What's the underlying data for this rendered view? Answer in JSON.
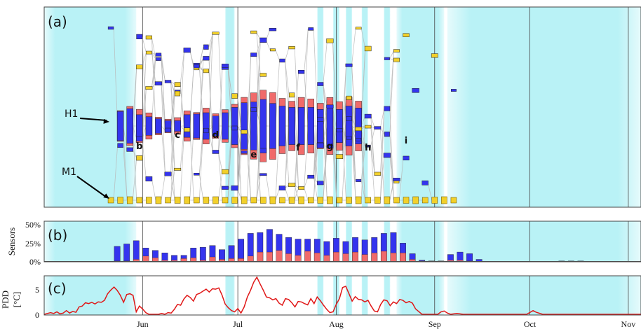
{
  "chart_data": [
    {
      "type": "timeline-graph",
      "panel_label": "(a)",
      "annotations": [
        {
          "label": "H1",
          "x": "2018-05-22",
          "level": 175
        },
        {
          "label": "M1",
          "x": "2018-05-22",
          "level": 285
        }
      ],
      "period_letters": [
        {
          "label": "b",
          "x": "2018-05-31",
          "level": 213
        },
        {
          "label": "c",
          "x": "2018-06-12",
          "level": 197
        },
        {
          "label": "d",
          "x": "2018-06-24",
          "level": 197
        },
        {
          "label": "e",
          "x": "2018-07-06",
          "level": 225
        },
        {
          "label": "f",
          "x": "2018-07-20",
          "level": 215
        },
        {
          "label": "g",
          "x": "2018-07-30",
          "level": 213
        },
        {
          "label": "h",
          "x": "2018-08-11",
          "level": 215
        },
        {
          "label": "i",
          "x": "2018-08-23",
          "level": 205
        }
      ],
      "cyan_shading": [
        "2018-05-01/2018-05-30",
        "2018-06-27/2018-06-30",
        "2018-07-26/2018-07-28",
        "2018-07-31/2018-08-02",
        "2018-08-04/2018-08-06",
        "2018-08-09/2018-08-11",
        "2018-08-16/2018-08-18",
        "2018-08-20/2018-09-04",
        "2018-09-05/2018-11-05"
      ],
      "colors": {
        "H": "#3434ee",
        "H_dry": "#f06a6a",
        "M": "#f2d02a",
        "edge": "#b8b8b8",
        "shade": "#b9f2f6"
      }
    },
    {
      "type": "bar",
      "panel_label": "(b)",
      "ylabel": "Sensors",
      "yticks": [
        "50%",
        "25%",
        "0%"
      ],
      "ylim": [
        0,
        50
      ],
      "series": [
        {
          "color": "#3434ee",
          "values": [
            {
              "x": "2018-05-24",
              "v": 19
            },
            {
              "x": "2018-05-27",
              "v": 22
            },
            {
              "x": "2018-05-30",
              "v": 26
            },
            {
              "x": "2018-06-02",
              "v": 17
            },
            {
              "x": "2018-06-05",
              "v": 14
            },
            {
              "x": "2018-06-08",
              "v": 11
            },
            {
              "x": "2018-06-11",
              "v": 8
            },
            {
              "x": "2018-06-14",
              "v": 8
            },
            {
              "x": "2018-06-17",
              "v": 17
            },
            {
              "x": "2018-06-20",
              "v": 18
            },
            {
              "x": "2018-06-23",
              "v": 20
            },
            {
              "x": "2018-06-26",
              "v": 15
            },
            {
              "x": "2018-06-29",
              "v": 20
            },
            {
              "x": "2018-07-02",
              "v": 28
            },
            {
              "x": "2018-07-05",
              "v": 35
            },
            {
              "x": "2018-07-08",
              "v": 36
            },
            {
              "x": "2018-07-11",
              "v": 40
            },
            {
              "x": "2018-07-14",
              "v": 34
            },
            {
              "x": "2018-07-17",
              "v": 30
            },
            {
              "x": "2018-07-20",
              "v": 28
            },
            {
              "x": "2018-07-23",
              "v": 28
            },
            {
              "x": "2018-07-26",
              "v": 28
            },
            {
              "x": "2018-07-29",
              "v": 25
            },
            {
              "x": "2018-08-01",
              "v": 29
            },
            {
              "x": "2018-08-04",
              "v": 25
            },
            {
              "x": "2018-08-07",
              "v": 30
            },
            {
              "x": "2018-08-10",
              "v": 27
            },
            {
              "x": "2018-08-13",
              "v": 30
            },
            {
              "x": "2018-08-16",
              "v": 35
            },
            {
              "x": "2018-08-19",
              "v": 36
            },
            {
              "x": "2018-08-22",
              "v": 23
            },
            {
              "x": "2018-08-25",
              "v": 10
            },
            {
              "x": "2018-08-28",
              "v": 2
            },
            {
              "x": "2018-08-31",
              "v": 1
            },
            {
              "x": "2018-09-03",
              "v": 1
            },
            {
              "x": "2018-09-06",
              "v": 9
            },
            {
              "x": "2018-09-09",
              "v": 12
            },
            {
              "x": "2018-09-12",
              "v": 10
            },
            {
              "x": "2018-09-15",
              "v": 3
            },
            {
              "x": "2018-10-11",
              "v": 1
            },
            {
              "x": "2018-10-14",
              "v": 1
            },
            {
              "x": "2018-10-17",
              "v": 1
            }
          ]
        },
        {
          "color": "#f06a6a",
          "values": [
            {
              "x": "2018-05-24",
              "v": 1
            },
            {
              "x": "2018-05-27",
              "v": 1
            },
            {
              "x": "2018-05-30",
              "v": 3
            },
            {
              "x": "2018-06-02",
              "v": 7
            },
            {
              "x": "2018-06-05",
              "v": 5
            },
            {
              "x": "2018-06-08",
              "v": 2
            },
            {
              "x": "2018-06-11",
              "v": 2
            },
            {
              "x": "2018-06-14",
              "v": 4
            },
            {
              "x": "2018-06-17",
              "v": 5
            },
            {
              "x": "2018-06-20",
              "v": 2
            },
            {
              "x": "2018-06-23",
              "v": 6
            },
            {
              "x": "2018-06-26",
              "v": 3
            },
            {
              "x": "2018-06-29",
              "v": 4
            },
            {
              "x": "2018-07-02",
              "v": 4
            },
            {
              "x": "2018-07-05",
              "v": 7
            },
            {
              "x": "2018-07-08",
              "v": 12
            },
            {
              "x": "2018-07-11",
              "v": 12
            },
            {
              "x": "2018-07-14",
              "v": 14
            },
            {
              "x": "2018-07-17",
              "v": 10
            },
            {
              "x": "2018-07-20",
              "v": 8
            },
            {
              "x": "2018-07-23",
              "v": 13
            },
            {
              "x": "2018-07-26",
              "v": 11
            },
            {
              "x": "2018-07-29",
              "v": 8
            },
            {
              "x": "2018-08-01",
              "v": 12
            },
            {
              "x": "2018-08-04",
              "v": 10
            },
            {
              "x": "2018-08-07",
              "v": 12
            },
            {
              "x": "2018-08-10",
              "v": 9
            },
            {
              "x": "2018-08-13",
              "v": 11
            },
            {
              "x": "2018-08-16",
              "v": 13
            },
            {
              "x": "2018-08-19",
              "v": 11
            },
            {
              "x": "2018-08-22",
              "v": 11
            },
            {
              "x": "2018-08-25",
              "v": 3
            },
            {
              "x": "2018-08-28",
              "v": 1
            },
            {
              "x": "2018-08-31",
              "v": 1
            },
            {
              "x": "2018-09-03",
              "v": 1
            },
            {
              "x": "2018-09-06",
              "v": 2
            },
            {
              "x": "2018-09-09",
              "v": 2
            },
            {
              "x": "2018-09-12",
              "v": 1
            },
            {
              "x": "2018-09-15",
              "v": 0
            },
            {
              "x": "2018-10-11",
              "v": 0
            },
            {
              "x": "2018-10-14",
              "v": 0
            },
            {
              "x": "2018-10-17",
              "v": 0
            }
          ]
        }
      ]
    },
    {
      "type": "line",
      "panel_label": "(c)",
      "ylabel": "PDD\n[°C]",
      "yticks": [
        "5",
        "0"
      ],
      "ylim": [
        0,
        9
      ],
      "xtick_labels": [
        "Jun",
        "Jul",
        "Aug",
        "Sep",
        "Oct",
        "Nov"
      ],
      "xtick_dates": [
        "2018-06-01",
        "2018-07-01",
        "2018-08-01",
        "2018-09-01",
        "2018-10-01",
        "2018-11-01"
      ],
      "line_color": "#e01818",
      "x": [
        "2018-05-01",
        "2018-05-03",
        "2018-05-04",
        "2018-05-05",
        "2018-05-06",
        "2018-05-07",
        "2018-05-08",
        "2018-05-09",
        "2018-05-10",
        "2018-05-11",
        "2018-05-12",
        "2018-05-13",
        "2018-05-14",
        "2018-05-15",
        "2018-05-16",
        "2018-05-17",
        "2018-05-18",
        "2018-05-19",
        "2018-05-20",
        "2018-05-21",
        "2018-05-22",
        "2018-05-23",
        "2018-05-24",
        "2018-05-25",
        "2018-05-26",
        "2018-05-27",
        "2018-05-28",
        "2018-05-29",
        "2018-05-30",
        "2018-05-31",
        "2018-06-01",
        "2018-06-02",
        "2018-06-03",
        "2018-06-06",
        "2018-06-07",
        "2018-06-08",
        "2018-06-09",
        "2018-06-10",
        "2018-06-11",
        "2018-06-12",
        "2018-06-13",
        "2018-06-14",
        "2018-06-15",
        "2018-06-16",
        "2018-06-17",
        "2018-06-18",
        "2018-06-19",
        "2018-06-20",
        "2018-06-21",
        "2018-06-22",
        "2018-06-23",
        "2018-06-24",
        "2018-06-25",
        "2018-06-26",
        "2018-06-27",
        "2018-06-28",
        "2018-06-29",
        "2018-06-30",
        "2018-07-01",
        "2018-07-02",
        "2018-07-03",
        "2018-07-04",
        "2018-07-05",
        "2018-07-06",
        "2018-07-07",
        "2018-07-08",
        "2018-07-09",
        "2018-07-10",
        "2018-07-11",
        "2018-07-12",
        "2018-07-13",
        "2018-07-14",
        "2018-07-15",
        "2018-07-16",
        "2018-07-17",
        "2018-07-18",
        "2018-07-19",
        "2018-07-20",
        "2018-07-21",
        "2018-07-22",
        "2018-07-23",
        "2018-07-24",
        "2018-07-25",
        "2018-07-26",
        "2018-07-27",
        "2018-07-28",
        "2018-07-29",
        "2018-07-30",
        "2018-07-31",
        "2018-08-01",
        "2018-08-02",
        "2018-08-03",
        "2018-08-04",
        "2018-08-05",
        "2018-08-06",
        "2018-08-07",
        "2018-08-08",
        "2018-08-09",
        "2018-08-10",
        "2018-08-11",
        "2018-08-12",
        "2018-08-13",
        "2018-08-14",
        "2018-08-15",
        "2018-08-16",
        "2018-08-17",
        "2018-08-18",
        "2018-08-19",
        "2018-08-20",
        "2018-08-21",
        "2018-08-22",
        "2018-08-23",
        "2018-08-24",
        "2018-08-25",
        "2018-08-26",
        "2018-08-28",
        "2018-09-02",
        "2018-09-03",
        "2018-09-04",
        "2018-09-05",
        "2018-09-06",
        "2018-09-08",
        "2018-09-10",
        "2018-09-30",
        "2018-10-02",
        "2018-10-03",
        "2018-10-05",
        "2018-10-08",
        "2018-11-05"
      ],
      "y": [
        0,
        0.4,
        0.2,
        0.6,
        0.1,
        0.3,
        0.9,
        0.3,
        0.7,
        0.5,
        1.8,
        2.0,
        2.8,
        2.6,
        2.9,
        2.5,
        3.0,
        2.9,
        3.4,
        5.0,
        5.9,
        6.6,
        5.8,
        4.6,
        2.9,
        4.8,
        5.0,
        4.6,
        0.6,
        2.0,
        1.3,
        0.4,
        0,
        0,
        0.2,
        0,
        0.4,
        0.3,
        1.2,
        2.4,
        2.2,
        3.7,
        4.6,
        4.1,
        3.2,
        4.8,
        5.1,
        5.6,
        6.1,
        5.4,
        6.2,
        6.1,
        6.4,
        4.7,
        2.5,
        1.6,
        0.9,
        0.6,
        1.4,
        0.3,
        1.8,
        4.2,
        5.8,
        7.8,
        9.0,
        7.4,
        5.9,
        4.2,
        4.0,
        3.5,
        3.8,
        2.7,
        2.2,
        3.8,
        3.6,
        2.8,
        1.8,
        3.1,
        3.0,
        2.6,
        2.3,
        3.8,
        2.6,
        4.2,
        3.3,
        2.2,
        1.2,
        0.4,
        0.6,
        2.4,
        3.8,
        6.5,
        6.8,
        5.0,
        3.2,
        4.3,
        3.6,
        3.5,
        3.0,
        3.4,
        2.0,
        0.8,
        0.6,
        2.4,
        3.5,
        3.3,
        2.1,
        3.0,
        2.6,
        3.6,
        3.4,
        2.8,
        3.1,
        2.7,
        1.3,
        0,
        0,
        0.6,
        0.8,
        0.3,
        0,
        0.2,
        0,
        0,
        0.9,
        0.5,
        0,
        0,
        0
      ]
    }
  ]
}
